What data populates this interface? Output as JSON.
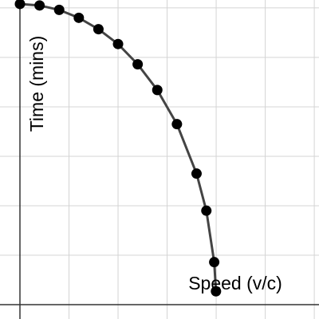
{
  "chart_data": {
    "type": "scatter",
    "x_label": "Speed (v/c)",
    "y_label": "Time (mins)",
    "x": [
      0,
      0.1,
      0.2,
      0.3,
      0.4,
      0.5,
      0.6,
      0.7,
      0.8,
      0.9,
      0.95,
      0.99,
      0.999
    ],
    "series": [
      {
        "color": "#000000",
        "line_color": "#444444",
        "values": [
          6.08,
          6.05,
          5.96,
          5.8,
          5.57,
          5.27,
          4.86,
          4.34,
          3.65,
          2.65,
          1.9,
          0.86,
          0.27
        ]
      }
    ],
    "xlim": [
      -0.1016,
      1.524
    ],
    "ylim": [
      -0.29,
      6.16
    ],
    "xticks": [
      0,
      0.25,
      0.5,
      0.75,
      1,
      1.25,
      1.5
    ],
    "yticks": [
      0,
      1,
      2,
      3,
      4,
      5,
      6
    ],
    "grid": true
  }
}
